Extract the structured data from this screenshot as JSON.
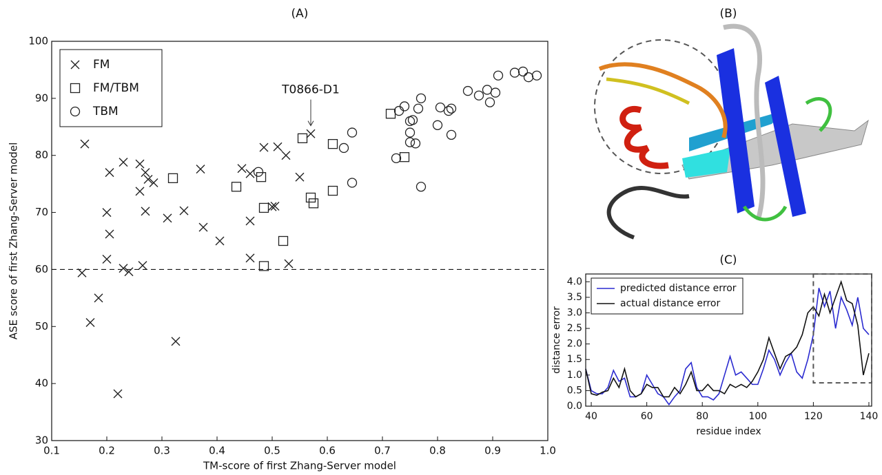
{
  "chart_data": [
    {
      "type": "scatter",
      "title": "(A)",
      "x_label": "TM-score of first Zhang-Server model",
      "y_label": "ASE score of first Zhang-Server model",
      "xlim": [
        0.1,
        1.0
      ],
      "ylim": [
        30,
        100
      ],
      "xticks": [
        0.1,
        0.2,
        0.3,
        0.4,
        0.5,
        0.6,
        0.7,
        0.8,
        0.9,
        {
          "value": 1,
          "label": "1.0"
        }
      ],
      "yticks": [
        30,
        40,
        50,
        60,
        70,
        80,
        90,
        100
      ],
      "hline": 60,
      "legend": "upper left",
      "annotation": {
        "text": "T0866-D1",
        "x": 0.57,
        "y": 84
      },
      "series": [
        {
          "name": "FM",
          "marker": "x",
          "color": "#222222",
          "x": [
            0.16,
            0.205,
            0.23,
            0.26,
            0.27,
            0.26,
            0.275,
            0.285,
            0.27,
            0.2,
            0.205,
            0.2,
            0.23,
            0.24,
            0.265,
            0.155,
            0.185,
            0.17,
            0.325,
            0.22,
            0.31,
            0.34,
            0.37,
            0.375,
            0.405,
            0.445,
            0.46,
            0.46,
            0.46,
            0.485,
            0.5,
            0.505,
            0.51,
            0.525,
            0.55,
            0.53,
            0.57
          ],
          "values": [
            82,
            77,
            78.8,
            78.5,
            77,
            73.7,
            75.8,
            75.2,
            70.2,
            70,
            66.2,
            61.8,
            60.2,
            59.6,
            60.7,
            59.4,
            55,
            50.7,
            47.4,
            38.2,
            69,
            70.3,
            77.6,
            67.4,
            65,
            77.7,
            76.8,
            68.5,
            62,
            81.4,
            71,
            71.1,
            81.5,
            80,
            76.2,
            61,
            83.8
          ]
        },
        {
          "name": "FM/TBM",
          "marker": "s",
          "color": "#222222",
          "x": [
            0.32,
            0.435,
            0.48,
            0.485,
            0.485,
            0.52,
            0.555,
            0.57,
            0.575,
            0.61,
            0.61,
            0.715,
            0.74
          ],
          "values": [
            76,
            74.5,
            76.2,
            70.8,
            60.6,
            65,
            83,
            72.6,
            71.6,
            82,
            73.8,
            87.3,
            79.7
          ]
        },
        {
          "name": "TBM",
          "marker": "o",
          "color": "#222222",
          "x": [
            0.475,
            0.645,
            0.63,
            0.645,
            0.725,
            0.73,
            0.74,
            0.75,
            0.755,
            0.75,
            0.75,
            0.76,
            0.765,
            0.77,
            0.77,
            0.8,
            0.805,
            0.82,
            0.825,
            0.825,
            0.855,
            0.875,
            0.89,
            0.895,
            0.905,
            0.91,
            0.94,
            0.955,
            0.965,
            0.98
          ],
          "values": [
            77.1,
            84,
            81.3,
            75.2,
            79.5,
            87.8,
            88.6,
            86,
            86.2,
            84,
            82.3,
            82.1,
            88.2,
            90,
            74.5,
            85.3,
            88.4,
            87.8,
            88.2,
            83.6,
            91.3,
            90.5,
            91.5,
            89.3,
            91,
            94,
            94.5,
            94.7,
            93.7,
            94
          ]
        }
      ]
    },
    {
      "type": "image",
      "title": "(B)"
    },
    {
      "type": "line",
      "title": "(C)",
      "x_label": "residue index",
      "y_label": "distance error",
      "xlim": [
        38,
        141
      ],
      "ylim": [
        0,
        4.25
      ],
      "xticks": [
        40,
        60,
        80,
        100,
        120,
        140
      ],
      "yticks": [
        {
          "value": 0,
          "label": "0.0"
        },
        0.5,
        {
          "value": 1,
          "label": "1.0"
        },
        1.5,
        {
          "value": 2,
          "label": "2.0"
        },
        2.5,
        {
          "value": 3,
          "label": "3.0"
        },
        3.5,
        {
          "value": 4,
          "label": "4.0"
        }
      ],
      "legend": "upper left",
      "highlight_box": {
        "xlim": [
          120,
          141
        ],
        "ylim": [
          0.75,
          4.25
        ]
      },
      "x": [
        38,
        40,
        42,
        44,
        46,
        48,
        50,
        52,
        54,
        56,
        58,
        60,
        62,
        64,
        66,
        68,
        70,
        72,
        74,
        76,
        78,
        80,
        82,
        84,
        86,
        88,
        90,
        92,
        94,
        96,
        98,
        100,
        102,
        104,
        106,
        108,
        110,
        112,
        114,
        116,
        118,
        120,
        122,
        124,
        126,
        128,
        130,
        132,
        134,
        136,
        138,
        140
      ],
      "series": [
        {
          "name": "predicted distance error",
          "color": "#2a2ad0",
          "values": [
            1.2,
            0.5,
            0.4,
            0.4,
            0.6,
            1.15,
            0.8,
            0.9,
            0.3,
            0.3,
            0.4,
            1.0,
            0.7,
            0.4,
            0.3,
            0.05,
            0.3,
            0.5,
            1.2,
            1.4,
            0.6,
            0.3,
            0.3,
            0.2,
            0.4,
            1.0,
            1.6,
            1.0,
            1.1,
            0.9,
            0.7,
            0.7,
            1.2,
            1.8,
            1.5,
            1.0,
            1.4,
            1.7,
            1.1,
            0.9,
            1.5,
            2.3,
            3.8,
            3.2,
            3.7,
            2.5,
            3.5,
            3.1,
            2.6,
            3.5,
            2.5,
            2.3
          ]
        },
        {
          "name": "actual distance error",
          "color": "#111111",
          "values": [
            1.2,
            0.4,
            0.35,
            0.45,
            0.5,
            0.9,
            0.6,
            1.2,
            0.5,
            0.3,
            0.4,
            0.7,
            0.6,
            0.6,
            0.3,
            0.3,
            0.6,
            0.4,
            0.7,
            1.1,
            0.5,
            0.5,
            0.7,
            0.5,
            0.5,
            0.4,
            0.7,
            0.6,
            0.7,
            0.6,
            0.8,
            1.1,
            1.5,
            2.2,
            1.7,
            1.2,
            1.6,
            1.7,
            1.9,
            2.3,
            3.0,
            3.2,
            2.9,
            3.6,
            3.0,
            3.5,
            4.0,
            3.4,
            3.3,
            2.6,
            1.0,
            1.7
          ]
        }
      ]
    }
  ]
}
